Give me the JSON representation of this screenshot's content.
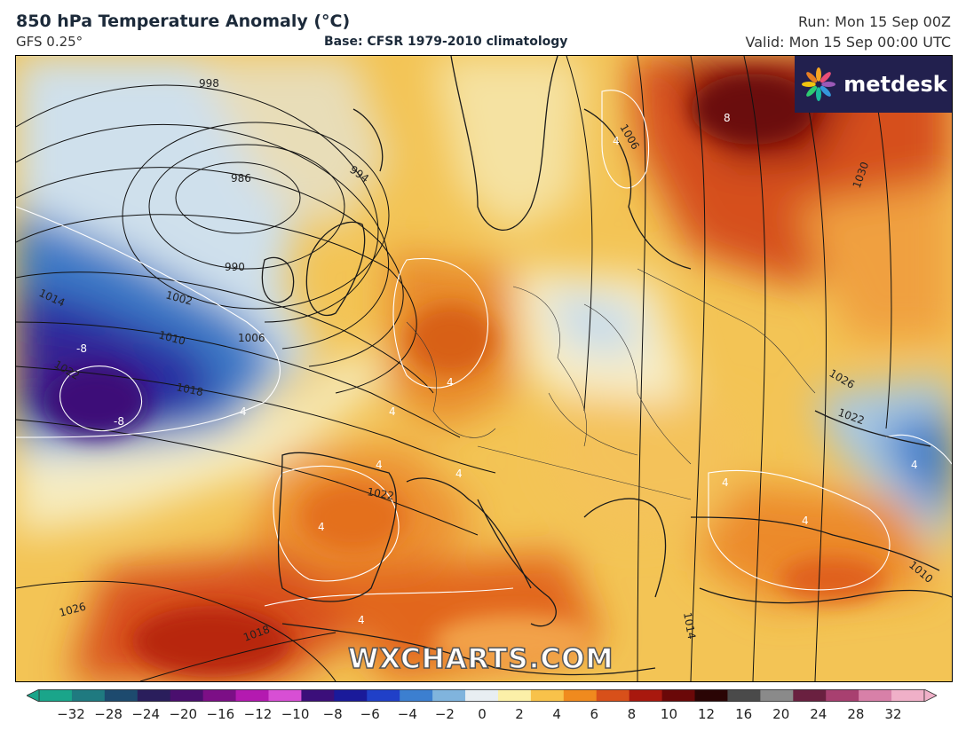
{
  "header": {
    "title": "850 hPa Temperature Anomaly (°C)",
    "model": "GFS 0.25°",
    "base": "Base: CFSR 1979-2010 climatology",
    "run": "Run: Mon 15 Sep 00Z",
    "valid": "Valid: Mon 15 Sep 00:00 UTC"
  },
  "logo": {
    "text": "metdesk",
    "icon": "metdesk-flower-icon"
  },
  "watermark": "WXCHARTS.COM",
  "isobar_labels": [
    "998",
    "986",
    "994",
    "990",
    "1002",
    "1006",
    "1010",
    "1014",
    "1018",
    "1022",
    "1006",
    "1030",
    "1026",
    "1022",
    "1022",
    "1026",
    "1018",
    "1014",
    "1010"
  ],
  "anomaly_labels": [
    "-8",
    "-8",
    "4",
    "4",
    "4",
    "4",
    "4",
    "4",
    "4",
    "4",
    "4",
    "4",
    "4",
    "8"
  ],
  "colorbar": {
    "ticks": [
      "−32",
      "−28",
      "−24",
      "−20",
      "−16",
      "−12",
      "−10",
      "−8",
      "−6",
      "−4",
      "−2",
      "0",
      "2",
      "4",
      "6",
      "8",
      "10",
      "12",
      "16",
      "20",
      "24",
      "28",
      "32"
    ],
    "colors": [
      "#1aa58a",
      "#1f7a80",
      "#1d4a6e",
      "#2a1e5c",
      "#4a0f6e",
      "#7c0f86",
      "#b41ab0",
      "#d84fd4",
      "#3b0f7a",
      "#1a1a9a",
      "#2040c8",
      "#3c7fd0",
      "#80b4dd",
      "#e8eef2",
      "#fbf0a8",
      "#f8c24a",
      "#f08a1e",
      "#d8501a",
      "#a8180e",
      "#6a0808",
      "#2a0505",
      "#4a4a4a",
      "#8a8a8a",
      "#6a2040",
      "#a84070",
      "#d880a8",
      "#f0b0c8"
    ]
  }
}
